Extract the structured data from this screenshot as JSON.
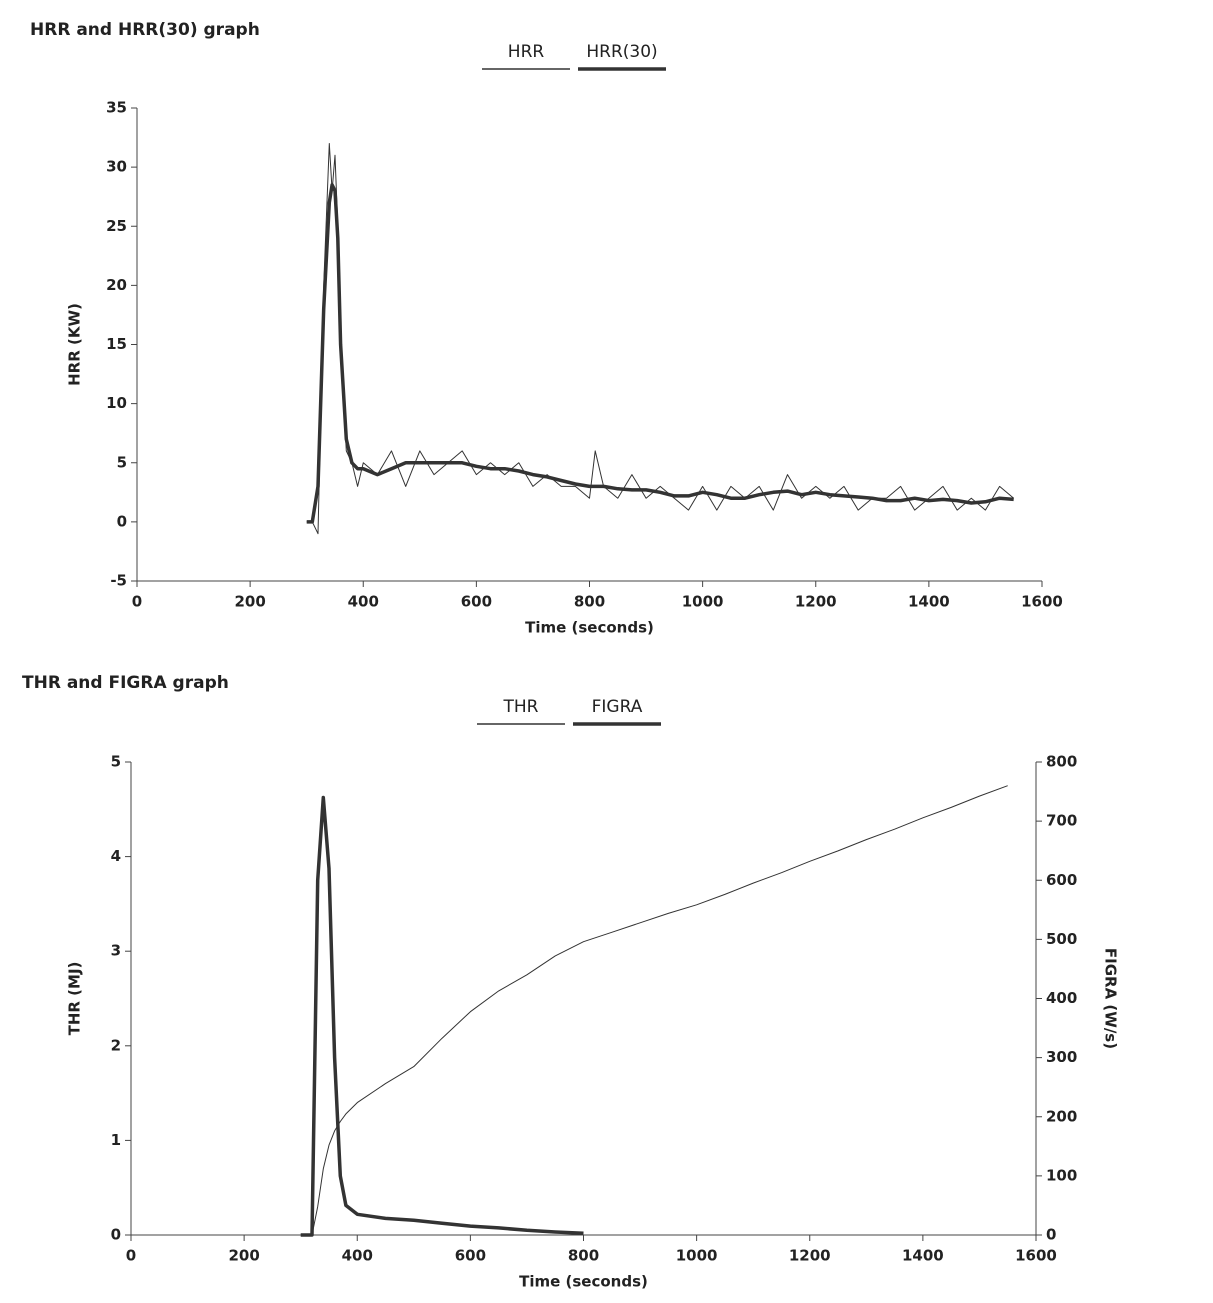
{
  "chart_data": [
    {
      "type": "line",
      "title": "HRR and HRR(30) graph",
      "x_label": "Time (seconds)",
      "y_label": "HRR (KW)",
      "xlim": [
        0,
        1600
      ],
      "xticks": [
        0,
        200,
        400,
        600,
        800,
        1000,
        1200,
        1400,
        1600
      ],
      "ylim": [
        -5,
        35
      ],
      "yticks": [
        -5,
        0,
        5,
        10,
        15,
        20,
        25,
        30,
        35
      ],
      "x": [
        300,
        310,
        320,
        330,
        340,
        345,
        350,
        355,
        360,
        370,
        380,
        390,
        400,
        425,
        450,
        475,
        500,
        525,
        550,
        575,
        600,
        625,
        650,
        675,
        700,
        725,
        750,
        775,
        800,
        810,
        825,
        850,
        875,
        900,
        925,
        950,
        975,
        1000,
        1025,
        1050,
        1075,
        1100,
        1125,
        1150,
        1175,
        1200,
        1225,
        1250,
        1275,
        1300,
        1325,
        1350,
        1375,
        1400,
        1425,
        1450,
        1475,
        1500,
        1525,
        1550
      ],
      "series": [
        {
          "name": "HRR",
          "color": "#333333",
          "width": 1,
          "values": [
            0,
            0,
            -1,
            20,
            32,
            28,
            31,
            25,
            15,
            6,
            5,
            3,
            5,
            4,
            6,
            3,
            6,
            4,
            5,
            6,
            4,
            5,
            4,
            5,
            3,
            4,
            3,
            3,
            2,
            6,
            3,
            2,
            4,
            2,
            3,
            2,
            1,
            3,
            1,
            3,
            2,
            3,
            1,
            4,
            2,
            3,
            2,
            3,
            1,
            2,
            2,
            3,
            1,
            2,
            3,
            1,
            2,
            1,
            3,
            2
          ]
        },
        {
          "name": "HRR(30)",
          "color": "#333333",
          "width": 3.5,
          "values": [
            0,
            0,
            3,
            18,
            27,
            28.5,
            28,
            24,
            15,
            7,
            5,
            4.5,
            4.5,
            4,
            4.5,
            5,
            5,
            5,
            5,
            5,
            4.7,
            4.5,
            4.5,
            4.3,
            4,
            3.8,
            3.5,
            3.2,
            3,
            3,
            3,
            2.8,
            2.7,
            2.7,
            2.5,
            2.2,
            2.2,
            2.5,
            2.3,
            2,
            2,
            2.3,
            2.5,
            2.6,
            2.3,
            2.5,
            2.3,
            2.2,
            2.1,
            2,
            1.8,
            1.8,
            2,
            1.8,
            1.9,
            1.8,
            1.6,
            1.7,
            2,
            1.9
          ]
        }
      ]
    },
    {
      "type": "line",
      "title": "THR and FIGRA graph",
      "x_label": "Time (seconds)",
      "y_label": "THR (MJ)",
      "y2_label": "FIGRA (W/s)",
      "xlim": [
        0,
        1600
      ],
      "xticks": [
        0,
        200,
        400,
        600,
        800,
        1000,
        1200,
        1400,
        1600
      ],
      "ylim": [
        0,
        5
      ],
      "yticks": [
        0,
        1,
        2,
        3,
        4,
        5
      ],
      "y2lim": [
        0,
        800
      ],
      "y2ticks": [
        0,
        100,
        200,
        300,
        400,
        500,
        600,
        700,
        800
      ],
      "x": [
        300,
        320,
        330,
        340,
        350,
        360,
        370,
        380,
        400,
        450,
        500,
        550,
        600,
        650,
        700,
        750,
        800,
        850,
        900,
        950,
        1000,
        1050,
        1100,
        1150,
        1200,
        1250,
        1300,
        1350,
        1400,
        1450,
        1500,
        1550
      ],
      "series": [
        {
          "name": "THR",
          "color": "#333333",
          "width": 1,
          "values": [
            0,
            0,
            0.3,
            0.7,
            0.95,
            1.1,
            1.2,
            1.28,
            1.4,
            1.6,
            1.78,
            2.08,
            2.36,
            2.58,
            2.75,
            2.95,
            3.1,
            3.2,
            3.3,
            3.4,
            3.49,
            3.6,
            3.72,
            3.83,
            3.95,
            4.06,
            4.18,
            4.29,
            4.41,
            4.52,
            4.64,
            4.75
          ]
        },
        {
          "name": "FIGRA",
          "color": "#333333",
          "width": 3.5,
          "axis": "y2",
          "values": [
            0,
            0,
            600,
            740,
            620,
            300,
            100,
            50,
            35,
            28,
            25,
            20,
            15,
            12,
            8,
            5,
            3,
            null,
            null,
            null,
            null,
            null,
            null,
            null,
            null,
            null,
            null,
            null,
            null,
            null,
            null,
            null
          ]
        }
      ]
    }
  ]
}
